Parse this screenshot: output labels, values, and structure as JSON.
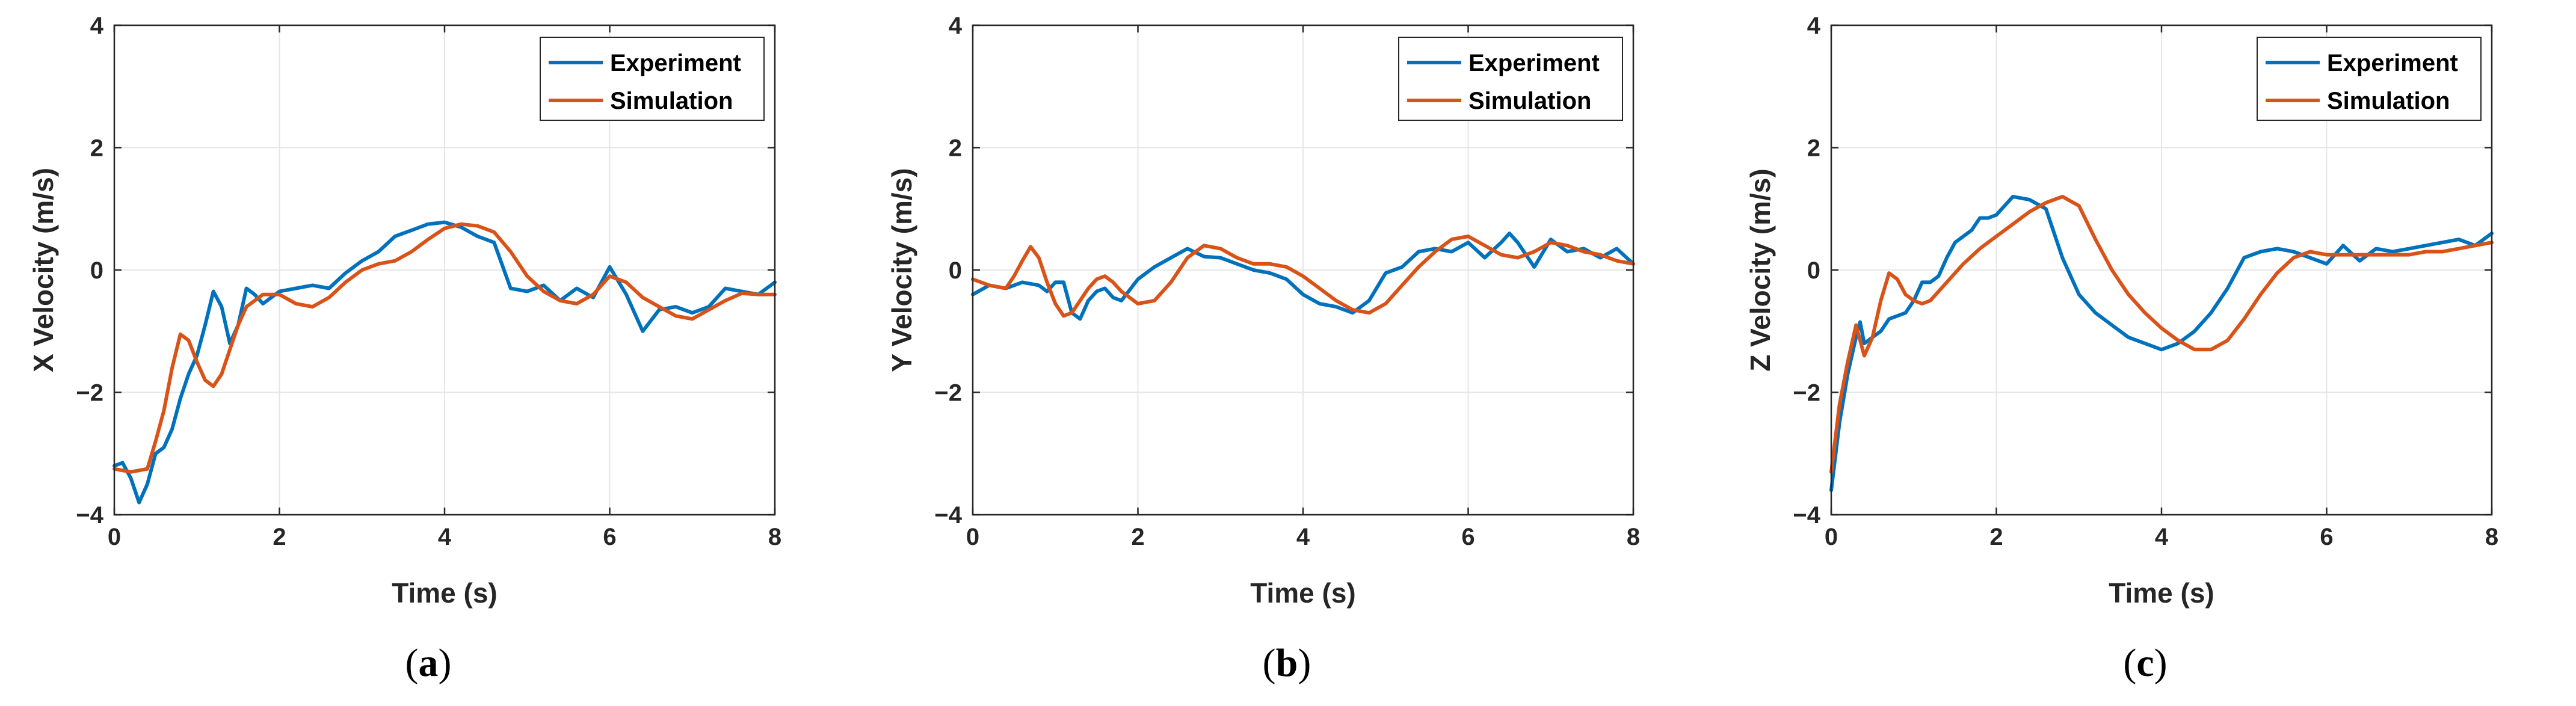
{
  "colors": {
    "experiment": "#0072BD",
    "simulation": "#D95319",
    "grid": "#e6e6e6",
    "axis": "#262626"
  },
  "chart_data": [
    {
      "type": "line",
      "caption": "a",
      "xlabel": "Time (s)",
      "ylabel": "X Velocity (m/s)",
      "xlim": [
        0,
        8
      ],
      "ylim": [
        -4,
        4
      ],
      "xticks": [
        "0",
        "2",
        "4",
        "6",
        "8"
      ],
      "yticks": [
        "4",
        "2",
        "0",
        "−2",
        "−4"
      ],
      "grid": true,
      "legend_position": "top-right",
      "series": [
        {
          "name": "Experiment",
          "x": [
            0,
            0.1,
            0.2,
            0.3,
            0.4,
            0.5,
            0.6,
            0.7,
            0.8,
            0.9,
            1.0,
            1.1,
            1.2,
            1.3,
            1.4,
            1.5,
            1.6,
            1.7,
            1.8,
            1.9,
            2.0,
            2.2,
            2.4,
            2.6,
            2.8,
            3.0,
            3.2,
            3.4,
            3.6,
            3.8,
            4.0,
            4.2,
            4.4,
            4.6,
            4.8,
            5.0,
            5.2,
            5.4,
            5.6,
            5.8,
            6.0,
            6.2,
            6.4,
            6.6,
            6.8,
            7.0,
            7.2,
            7.4,
            7.6,
            7.8,
            8.0
          ],
          "y": [
            -3.2,
            -3.15,
            -3.4,
            -3.8,
            -3.5,
            -3.0,
            -2.9,
            -2.6,
            -2.1,
            -1.7,
            -1.4,
            -0.9,
            -0.35,
            -0.6,
            -1.2,
            -0.9,
            -0.3,
            -0.4,
            -0.55,
            -0.45,
            -0.35,
            -0.3,
            -0.25,
            -0.3,
            -0.05,
            0.15,
            0.3,
            0.55,
            0.65,
            0.75,
            0.78,
            0.7,
            0.55,
            0.45,
            -0.3,
            -0.35,
            -0.25,
            -0.5,
            -0.3,
            -0.45,
            0.05,
            -0.4,
            -1.0,
            -0.65,
            -0.6,
            -0.7,
            -0.6,
            -0.3,
            -0.35,
            -0.4,
            -0.2
          ]
        },
        {
          "name": "Simulation",
          "x": [
            0,
            0.2,
            0.4,
            0.5,
            0.6,
            0.7,
            0.8,
            0.9,
            1.0,
            1.1,
            1.2,
            1.3,
            1.4,
            1.5,
            1.6,
            1.8,
            2.0,
            2.2,
            2.4,
            2.6,
            2.8,
            3.0,
            3.2,
            3.4,
            3.6,
            3.8,
            4.0,
            4.2,
            4.4,
            4.6,
            4.8,
            5.0,
            5.2,
            5.4,
            5.6,
            5.8,
            6.0,
            6.2,
            6.4,
            6.6,
            6.8,
            7.0,
            7.2,
            7.4,
            7.6,
            7.8,
            8.0
          ],
          "y": [
            -3.25,
            -3.3,
            -3.25,
            -2.8,
            -2.3,
            -1.6,
            -1.05,
            -1.15,
            -1.5,
            -1.8,
            -1.9,
            -1.7,
            -1.3,
            -0.9,
            -0.6,
            -0.4,
            -0.4,
            -0.55,
            -0.6,
            -0.45,
            -0.2,
            0.0,
            0.1,
            0.15,
            0.3,
            0.5,
            0.68,
            0.75,
            0.72,
            0.62,
            0.3,
            -0.1,
            -0.35,
            -0.5,
            -0.55,
            -0.4,
            -0.1,
            -0.2,
            -0.45,
            -0.6,
            -0.75,
            -0.8,
            -0.65,
            -0.5,
            -0.38,
            -0.4,
            -0.4
          ]
        }
      ]
    },
    {
      "type": "line",
      "caption": "b",
      "xlabel": "Time (s)",
      "ylabel": "Y Velocity (m/s)",
      "xlim": [
        0,
        8
      ],
      "ylim": [
        -4,
        4
      ],
      "xticks": [
        "0",
        "2",
        "4",
        "6",
        "8"
      ],
      "yticks": [
        "4",
        "2",
        "0",
        "−2",
        "−4"
      ],
      "grid": true,
      "legend_position": "top-right",
      "series": [
        {
          "name": "Experiment",
          "x": [
            0,
            0.2,
            0.4,
            0.6,
            0.8,
            0.9,
            1.0,
            1.1,
            1.2,
            1.3,
            1.4,
            1.5,
            1.6,
            1.7,
            1.8,
            2.0,
            2.2,
            2.4,
            2.6,
            2.8,
            3.0,
            3.2,
            3.4,
            3.6,
            3.8,
            4.0,
            4.2,
            4.4,
            4.6,
            4.8,
            5.0,
            5.2,
            5.4,
            5.6,
            5.8,
            6.0,
            6.2,
            6.4,
            6.5,
            6.6,
            6.8,
            7.0,
            7.2,
            7.4,
            7.6,
            7.8,
            8.0
          ],
          "y": [
            -0.4,
            -0.25,
            -0.3,
            -0.2,
            -0.25,
            -0.35,
            -0.2,
            -0.2,
            -0.7,
            -0.8,
            -0.5,
            -0.35,
            -0.3,
            -0.45,
            -0.5,
            -0.15,
            0.05,
            0.2,
            0.35,
            0.22,
            0.2,
            0.1,
            0.0,
            -0.05,
            -0.15,
            -0.4,
            -0.55,
            -0.6,
            -0.7,
            -0.5,
            -0.05,
            0.05,
            0.3,
            0.35,
            0.3,
            0.45,
            0.2,
            0.45,
            0.6,
            0.45,
            0.05,
            0.5,
            0.3,
            0.35,
            0.2,
            0.35,
            0.1
          ]
        },
        {
          "name": "Simulation",
          "x": [
            0,
            0.2,
            0.4,
            0.5,
            0.6,
            0.7,
            0.8,
            0.9,
            1.0,
            1.1,
            1.2,
            1.3,
            1.4,
            1.5,
            1.6,
            1.7,
            1.8,
            2.0,
            2.2,
            2.4,
            2.6,
            2.8,
            3.0,
            3.2,
            3.4,
            3.6,
            3.8,
            4.0,
            4.2,
            4.4,
            4.6,
            4.8,
            5.0,
            5.2,
            5.4,
            5.6,
            5.8,
            6.0,
            6.2,
            6.4,
            6.6,
            6.8,
            7.0,
            7.2,
            7.4,
            7.6,
            7.8,
            8.0
          ],
          "y": [
            -0.15,
            -0.25,
            -0.3,
            -0.1,
            0.15,
            0.38,
            0.2,
            -0.2,
            -0.55,
            -0.75,
            -0.7,
            -0.5,
            -0.3,
            -0.15,
            -0.1,
            -0.2,
            -0.35,
            -0.55,
            -0.5,
            -0.2,
            0.2,
            0.4,
            0.35,
            0.2,
            0.1,
            0.1,
            0.05,
            -0.1,
            -0.3,
            -0.5,
            -0.65,
            -0.7,
            -0.55,
            -0.25,
            0.05,
            0.3,
            0.5,
            0.55,
            0.4,
            0.25,
            0.2,
            0.3,
            0.45,
            0.4,
            0.3,
            0.25,
            0.15,
            0.1
          ]
        }
      ]
    },
    {
      "type": "line",
      "caption": "c",
      "xlabel": "Time (s)",
      "ylabel": "Z Velocity (m/s)",
      "xlim": [
        0,
        8
      ],
      "ylim": [
        -4,
        4
      ],
      "xticks": [
        "0",
        "2",
        "4",
        "6",
        "8"
      ],
      "yticks": [
        "4",
        "2",
        "0",
        "−2",
        "−4"
      ],
      "grid": true,
      "legend_position": "top-right",
      "series": [
        {
          "name": "Experiment",
          "x": [
            0,
            0.1,
            0.2,
            0.3,
            0.35,
            0.4,
            0.5,
            0.6,
            0.7,
            0.8,
            0.9,
            1.0,
            1.1,
            1.2,
            1.3,
            1.4,
            1.5,
            1.6,
            1.7,
            1.8,
            1.9,
            2.0,
            2.2,
            2.4,
            2.6,
            2.8,
            3.0,
            3.2,
            3.4,
            3.6,
            3.8,
            4.0,
            4.2,
            4.4,
            4.6,
            4.8,
            5.0,
            5.2,
            5.4,
            5.6,
            5.8,
            6.0,
            6.2,
            6.4,
            6.6,
            6.8,
            7.0,
            7.2,
            7.4,
            7.6,
            7.8,
            8.0
          ],
          "y": [
            -3.6,
            -2.5,
            -1.7,
            -1.1,
            -0.85,
            -1.2,
            -1.1,
            -1.0,
            -0.8,
            -0.75,
            -0.7,
            -0.5,
            -0.2,
            -0.2,
            -0.1,
            0.2,
            0.45,
            0.55,
            0.65,
            0.85,
            0.85,
            0.9,
            1.2,
            1.15,
            1.0,
            0.2,
            -0.4,
            -0.7,
            -0.9,
            -1.1,
            -1.2,
            -1.3,
            -1.2,
            -1.0,
            -0.7,
            -0.3,
            0.2,
            0.3,
            0.35,
            0.3,
            0.2,
            0.1,
            0.4,
            0.15,
            0.35,
            0.3,
            0.35,
            0.4,
            0.45,
            0.5,
            0.4,
            0.6
          ]
        },
        {
          "name": "Simulation",
          "x": [
            0,
            0.1,
            0.2,
            0.3,
            0.4,
            0.5,
            0.6,
            0.7,
            0.8,
            0.9,
            1.0,
            1.1,
            1.2,
            1.4,
            1.6,
            1.8,
            2.0,
            2.2,
            2.4,
            2.6,
            2.8,
            3.0,
            3.2,
            3.4,
            3.6,
            3.8,
            4.0,
            4.2,
            4.4,
            4.6,
            4.8,
            5.0,
            5.2,
            5.4,
            5.6,
            5.8,
            6.0,
            6.2,
            6.4,
            6.6,
            6.8,
            7.0,
            7.2,
            7.4,
            7.6,
            7.8,
            8.0
          ],
          "y": [
            -3.3,
            -2.2,
            -1.5,
            -0.9,
            -1.4,
            -1.1,
            -0.5,
            -0.05,
            -0.15,
            -0.4,
            -0.5,
            -0.55,
            -0.5,
            -0.2,
            0.1,
            0.35,
            0.55,
            0.75,
            0.95,
            1.1,
            1.2,
            1.05,
            0.5,
            0.0,
            -0.4,
            -0.7,
            -0.95,
            -1.15,
            -1.3,
            -1.3,
            -1.15,
            -0.8,
            -0.4,
            -0.05,
            0.2,
            0.3,
            0.25,
            0.25,
            0.25,
            0.25,
            0.25,
            0.25,
            0.3,
            0.3,
            0.35,
            0.4,
            0.45
          ]
        }
      ]
    }
  ]
}
